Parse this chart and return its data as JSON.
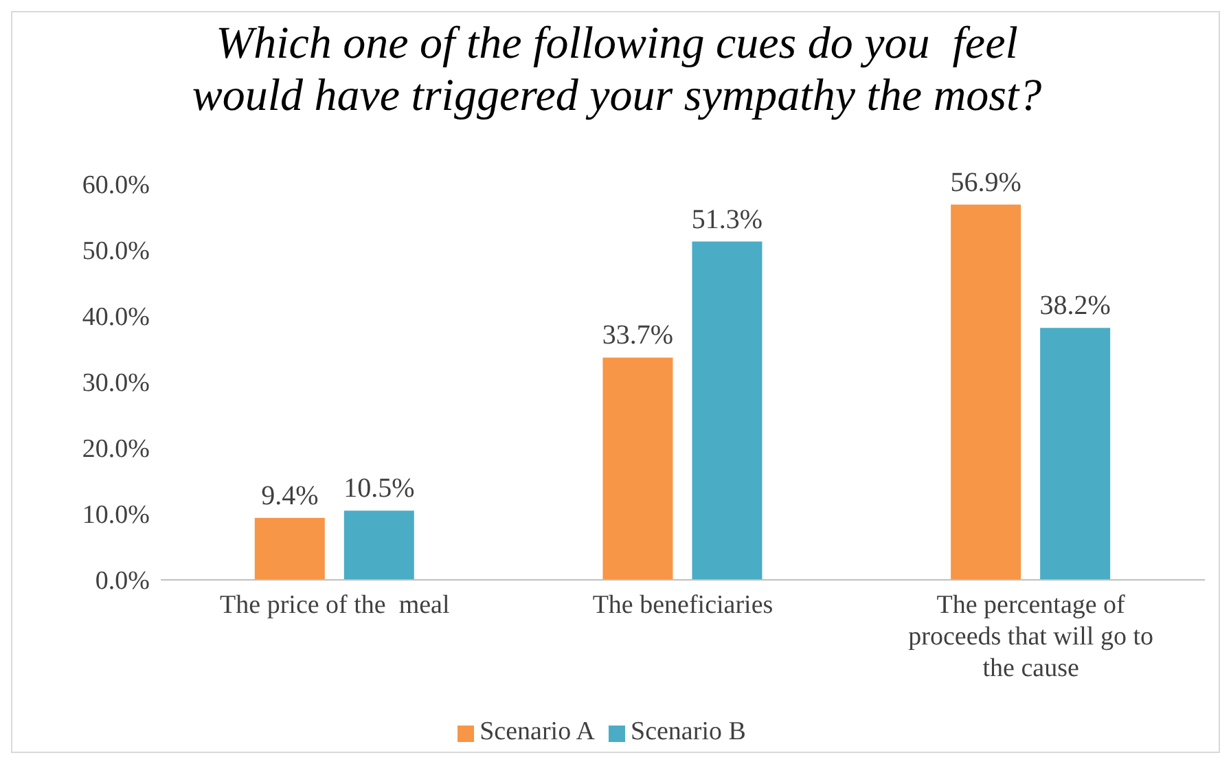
{
  "chart_data": {
    "type": "bar",
    "title": "Which one of the following cues do you  feel would have triggered your sympathy the most?",
    "categories": [
      "The price of the  meal",
      "The beneficiaries",
      "The percentage of proceeds that will go to the cause"
    ],
    "series": [
      {
        "name": "Scenario A",
        "color": "#f79646",
        "values": [
          9.4,
          33.7,
          56.9
        ],
        "value_labels": [
          "9.4%",
          "33.7%",
          "56.9%"
        ]
      },
      {
        "name": "Scenario B",
        "color": "#4bacc6",
        "values": [
          10.5,
          51.3,
          38.2
        ],
        "value_labels": [
          "10.5%",
          "51.3%",
          "38.2%"
        ]
      }
    ],
    "ylim": [
      0,
      60
    ],
    "yticks": [
      {
        "value": 0,
        "label": "0.0%"
      },
      {
        "value": 10,
        "label": "10.0%"
      },
      {
        "value": 20,
        "label": "20.0%"
      },
      {
        "value": 30,
        "label": "30.0%"
      },
      {
        "value": 40,
        "label": "40.0%"
      },
      {
        "value": 50,
        "label": "50.0%"
      },
      {
        "value": 60,
        "label": "60.0%"
      }
    ],
    "grid": false,
    "legend": "bottom"
  }
}
